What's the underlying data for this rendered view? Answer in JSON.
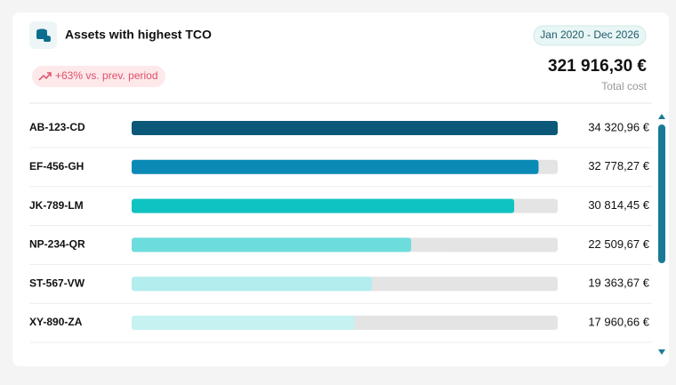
{
  "card": {
    "title": "Assets with highest TCO",
    "period": "Jan 2020 - Dec 2026",
    "trend": "+63% vs. prev. period",
    "total": "321 916,30 €",
    "total_label": "Total cost"
  },
  "chart_data": {
    "type": "hbar",
    "categories": [
      "AB-123-CD",
      "EF-456-GH",
      "JK-789-LM",
      "NP-234-QR",
      "ST-567-VW",
      "XY-890-ZA"
    ],
    "values": [
      34320.96,
      32778.27,
      30814.45,
      22509.67,
      19363.67,
      17960.66
    ],
    "value_labels": [
      "34 320,96 €",
      "32 778,27 €",
      "30 814,45 €",
      "22 509,67 €",
      "19 363,67 €",
      "17 960,66 €"
    ],
    "colors": [
      "#0b5878",
      "#0a8ab4",
      "#10c3c3",
      "#6ddcdc",
      "#b3eded",
      "#c6f2f2"
    ]
  }
}
